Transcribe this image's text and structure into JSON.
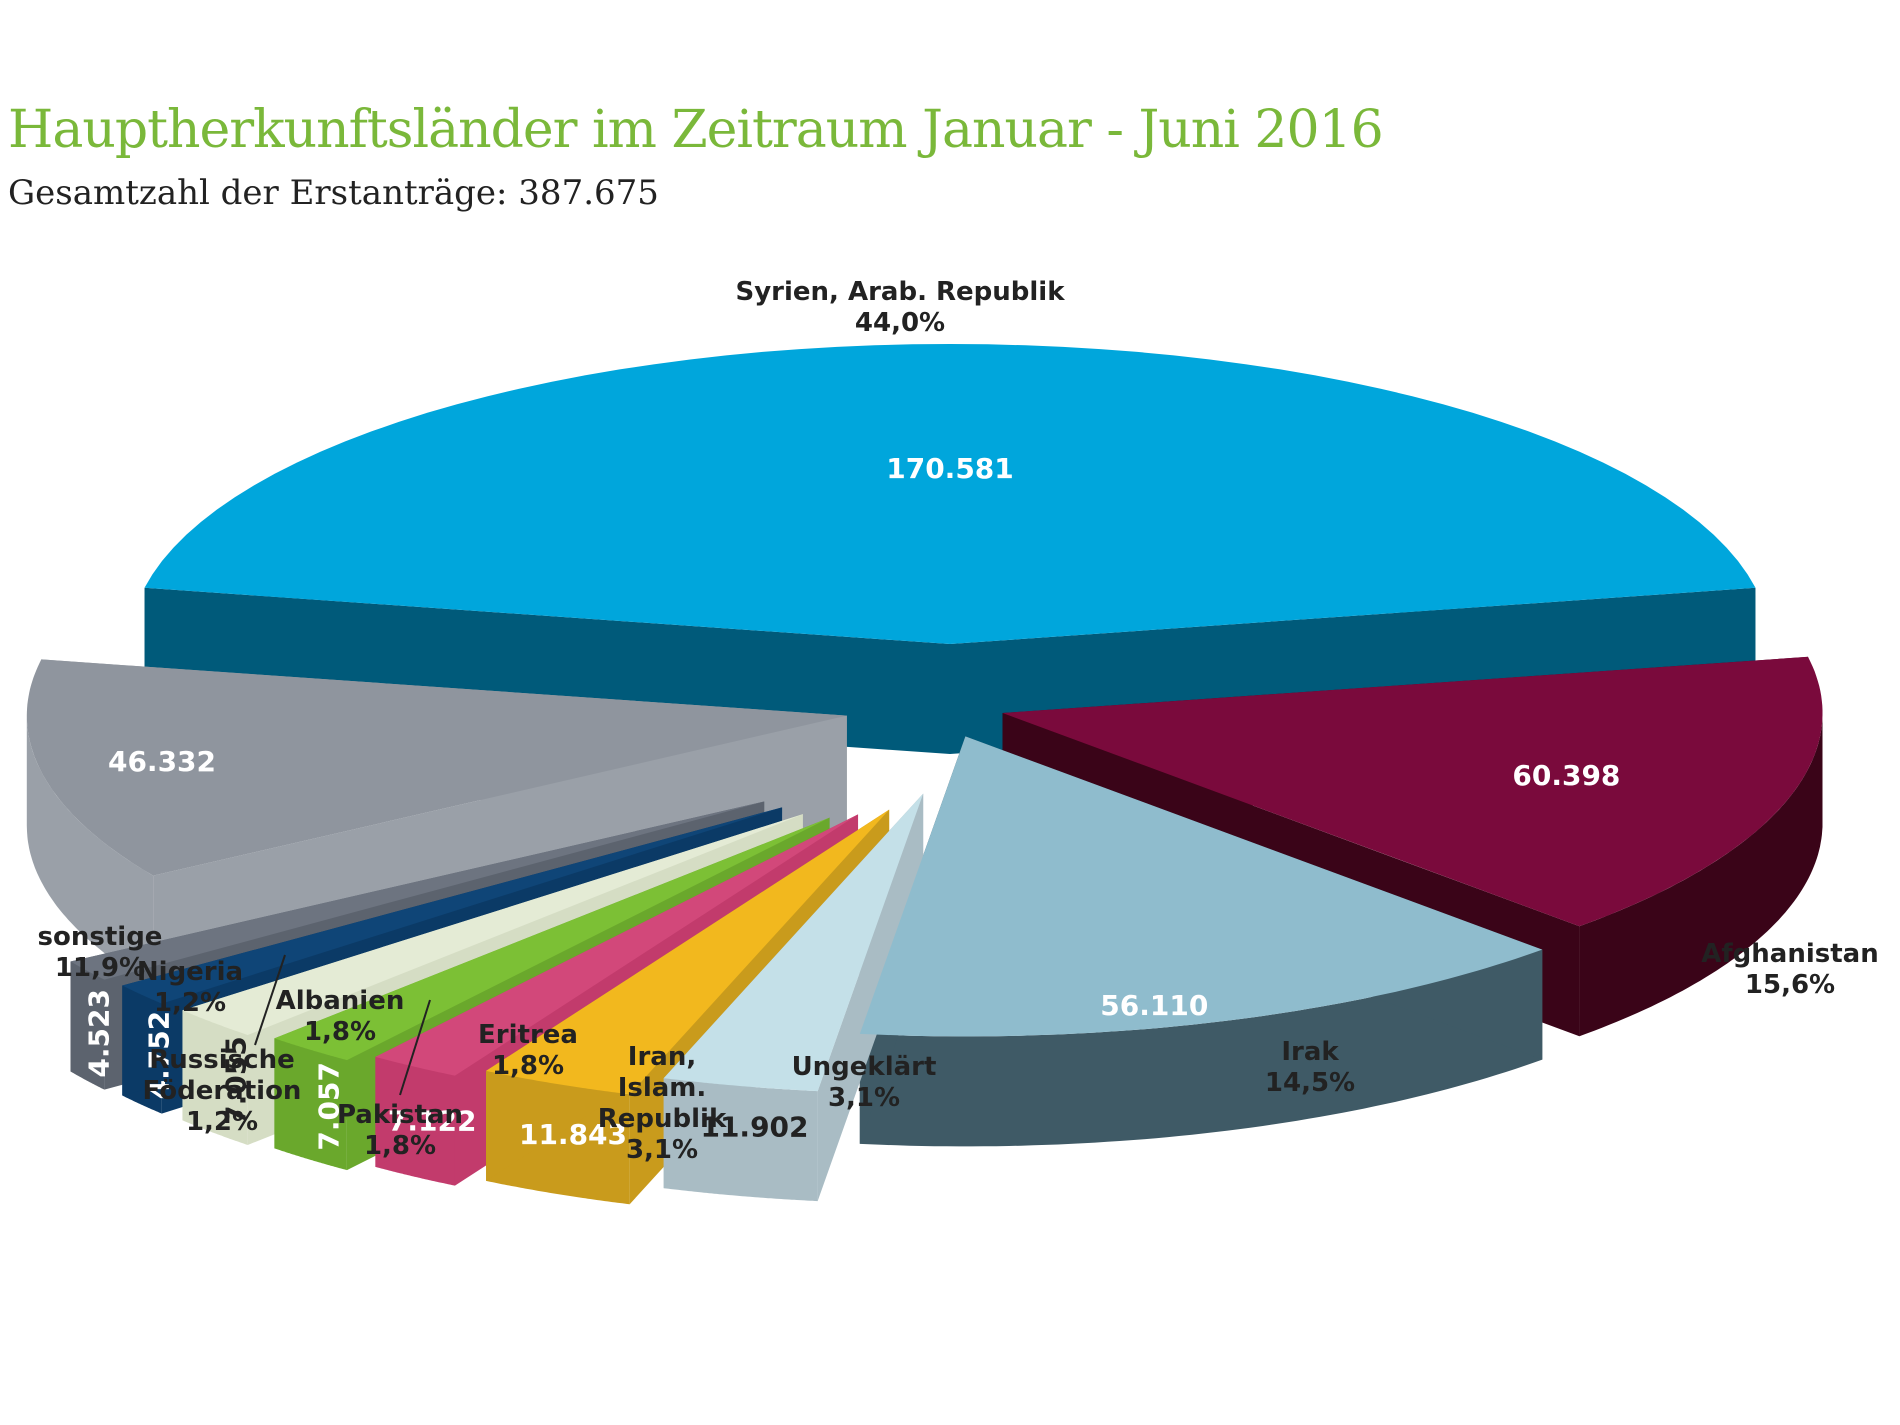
{
  "title": "Hauptherkunftsländer im Zeitraum Januar - Juni 2016",
  "subtitle": "Gesamtzahl der Erstanträge: 387.675",
  "chart_data": {
    "type": "pie",
    "style": "3d-exploded",
    "title": "Hauptherkunftsländer im Zeitraum Januar - Juni 2016",
    "subtitle": "Gesamtzahl der Erstanträge: 387.675",
    "total": 387675,
    "slices": [
      {
        "name": "Syrien, Arab. Republik",
        "value": 170581,
        "percent_label": "44,0%",
        "value_label": "170.581",
        "color": "#00a6dc",
        "side": "#005a7a"
      },
      {
        "name": "Afghanistan",
        "value": 60398,
        "percent_label": "15,6%",
        "value_label": "60.398",
        "color": "#7a0a3c",
        "side": "#3a0418"
      },
      {
        "name": "Irak",
        "value": 56110,
        "percent_label": "14,5%",
        "value_label": "56.110",
        "color": "#8fbccd",
        "side": "#3f5a66"
      },
      {
        "name": "Ungeklärt",
        "value": 11902,
        "percent_label": "3,1%",
        "value_label": "11.902",
        "color": "#c4e0e8",
        "side": "#a9bcc4"
      },
      {
        "name": "Iran, Islam. Republik",
        "value": 11843,
        "percent_label": "3,1%",
        "value_label": "11.843",
        "color": "#f2b81e",
        "side": "#c99b1c"
      },
      {
        "name": "Eritrea",
        "value": 7122,
        "percent_label": "1,8%",
        "value_label": "7.122",
        "color": "#d2487a",
        "side": "#c23b6c"
      },
      {
        "name": "Pakistan",
        "value": 7057,
        "percent_label": "1,8%",
        "value_label": "7.057",
        "color": "#7cc035",
        "side": "#6aa82c"
      },
      {
        "name": "Albanien",
        "value": 7055,
        "percent_label": "1,8%",
        "value_label": "7.055",
        "color": "#e4ebd5",
        "side": "#d5ddc4"
      },
      {
        "name": "Russische Föderation",
        "value": 4752,
        "percent_label": "1,2%",
        "value_label": "4.752",
        "color": "#0f4577",
        "side": "#0b3a66"
      },
      {
        "name": "Nigeria",
        "value": 4523,
        "percent_label": "1,2%",
        "value_label": "4.523",
        "color": "#6d7480",
        "side": "#5c636e"
      },
      {
        "name": "sonstige",
        "value": 46332,
        "percent_label": "11,9%",
        "value_label": "46.332",
        "color": "#8f959e",
        "side": "#9aa0a8"
      }
    ]
  }
}
